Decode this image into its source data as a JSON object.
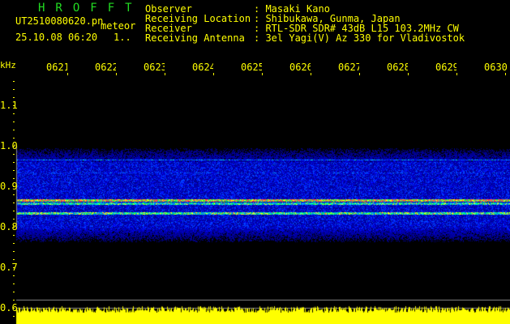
{
  "header": {
    "app_title": "HROFFT",
    "file_name": "UT2510080620.pn",
    "mode": "meteor",
    "datetime": "25.10.08 06:20",
    "extra": "1.."
  },
  "station_info": [
    {
      "label": "Observer",
      "value": ": Masaki Kano"
    },
    {
      "label": "Receiving Location",
      "value": ": Shibukawa, Gunma, Japan"
    },
    {
      "label": "Receiver",
      "value": ": RTL-SDR SDR# 43dB L15 103.2MHz CW"
    },
    {
      "label": "Receiving Antenna",
      "value": ": 3el Yagi(V) Az 330 for Vladivostok"
    }
  ],
  "spectrogram": {
    "y_unit": "kHz",
    "y_labels": [
      "1.1",
      "1.0",
      "0.9",
      "0.8",
      "0.7",
      "0.6"
    ],
    "time_labels": [
      "0621",
      "0622",
      "0623",
      "0624",
      "0625",
      "0626",
      "0627",
      "0628",
      "0629",
      "0630"
    ],
    "label_color": "#ffff00",
    "title_color": "#22dd22"
  }
}
